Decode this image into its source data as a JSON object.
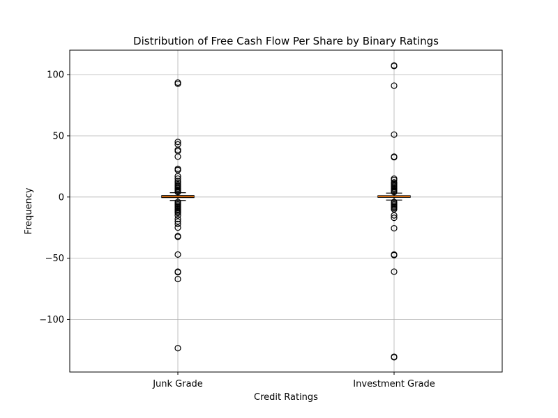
{
  "chart_data": {
    "type": "box",
    "title": "Distribution of Free Cash Flow Per Share by Binary Ratings",
    "xlabel": "Credit Ratings",
    "ylabel": "Frequency",
    "ylim": [
      -143,
      120
    ],
    "yticks": [
      -100,
      -50,
      0,
      50,
      100
    ],
    "ytick_labels": [
      "−100",
      "−50",
      "0",
      "50",
      "100"
    ],
    "grid": true,
    "categories": [
      "Junk Grade",
      "Investment Grade"
    ],
    "boxes": [
      {
        "name": "Junk Grade",
        "q1": -0.4,
        "median": 0.3,
        "q3": 1.1,
        "whisker_low": -2.8,
        "whisker_high": 3.5,
        "outliers": [
          93.5,
          92.5,
          45,
          43,
          38.5,
          37.5,
          33,
          23,
          22,
          17,
          15,
          13,
          11.5,
          10,
          9,
          8,
          7,
          6,
          5,
          4,
          -4,
          -5,
          -6,
          -7,
          -8,
          -9,
          -10,
          -11,
          -12,
          -13,
          -15,
          -18,
          -20,
          -22,
          -25,
          -32,
          -32.5,
          -47,
          -61,
          -61.5,
          -67,
          -123.5
        ]
      },
      {
        "name": "Investment Grade",
        "q1": -0.2,
        "median": 0.4,
        "q3": 1.0,
        "whisker_low": -2.5,
        "whisker_high": 3.2,
        "outliers": [
          107.5,
          107,
          91,
          51,
          33,
          32.5,
          15,
          14,
          12,
          11,
          10,
          9,
          8,
          7,
          6,
          5,
          4,
          -4,
          -5,
          -6,
          -7,
          -8,
          -9,
          -10,
          -15,
          -17,
          -25.5,
          -47,
          -47.5,
          -61,
          -130.5,
          -131
        ]
      }
    ]
  }
}
